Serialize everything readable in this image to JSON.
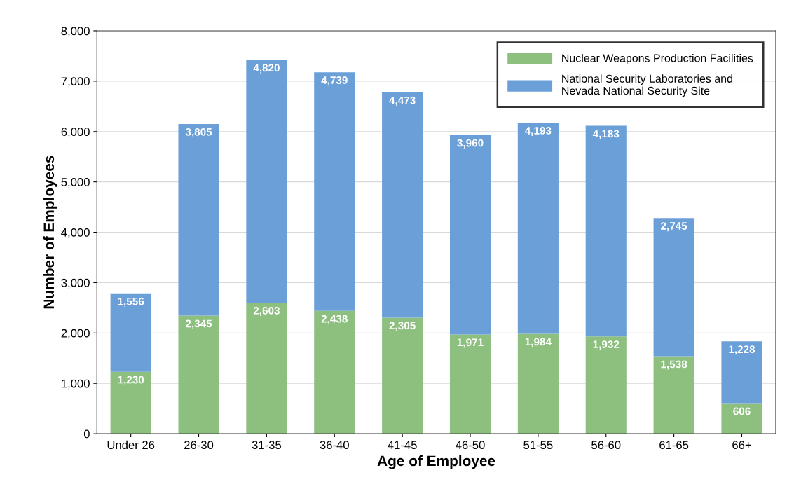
{
  "chart_data": {
    "type": "bar",
    "stacked": true,
    "xlabel": "Age of Employee",
    "ylabel": "Number of Employees",
    "categories": [
      "Under 26",
      "26-30",
      "31-35",
      "36-40",
      "41-45",
      "46-50",
      "51-55",
      "56-60",
      "61-65",
      "66+"
    ],
    "series": [
      {
        "name": "Nuclear Weapons Production Facilities",
        "color": "#8dc07f",
        "values": [
          1230,
          2345,
          2603,
          2438,
          2305,
          1971,
          1984,
          1932,
          1538,
          606
        ],
        "value_labels": [
          "1,230",
          "2,345",
          "2,603",
          "2,438",
          "2,305",
          "1,971",
          "1,984",
          "1,932",
          "1,538",
          "606"
        ]
      },
      {
        "name": "National Security Laboratories and\nNevada National Security Site",
        "color": "#6a9fd8",
        "values": [
          1556,
          3805,
          4820,
          4739,
          4473,
          3960,
          4193,
          4183,
          2745,
          1228
        ],
        "value_labels": [
          "1,556",
          "3,805",
          "4,820",
          "4,739",
          "4,473",
          "3,960",
          "4,193",
          "4,183",
          "2,745",
          "1,228"
        ]
      }
    ],
    "ylim": [
      0,
      8000
    ],
    "yticks": [
      0,
      {
        "value": 1000,
        "label": "1,000"
      },
      {
        "value": 2000,
        "label": "2,000"
      },
      {
        "value": 3000,
        "label": "3,000"
      },
      {
        "value": 4000,
        "label": "4,000"
      },
      {
        "value": 5000,
        "label": "5,000"
      },
      {
        "value": 6000,
        "label": "6,000"
      },
      {
        "value": 7000,
        "label": "7,000"
      },
      {
        "value": 8000,
        "label": "8,000"
      }
    ],
    "grid": "y",
    "legend": "top right"
  }
}
